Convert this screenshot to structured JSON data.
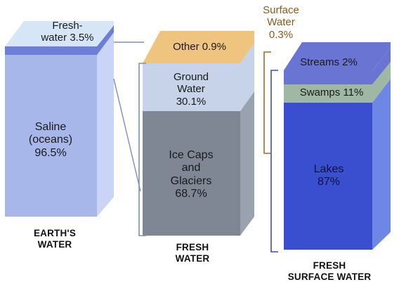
{
  "colors": {
    "ocean": "#a8b7ea",
    "ocean_side": "#c9d4f6",
    "ocean_top": "#cfe2f5",
    "fresh_band": "#6b7fd6",
    "fresh_top": "#d6e6f7",
    "other_top": "#efc47e",
    "ground": "#c6d3e8",
    "ice": "#7f8795",
    "ice_side": "#9aa2b0",
    "streams": "#6a74d2",
    "swamps": "#9fb8a4",
    "lakes": "#3a4fd0",
    "lakes_side": "#6e86e4",
    "bracket_brown": "#a06a2a",
    "bracket_blue": "#3d4fb8",
    "connector": "#7a8fc0"
  },
  "columns": [
    {
      "name": "EARTH'S WATER",
      "caption_lines": [
        "EARTH'S",
        "WATER"
      ],
      "segments": [
        {
          "label_lines": [
            "Fresh-",
            "water 3.5%"
          ],
          "value": 3.5
        },
        {
          "label_lines": [
            "Saline",
            "(oceans)",
            "96.5%"
          ],
          "value": 96.5
        }
      ]
    },
    {
      "name": "FRESH WATER",
      "caption_lines": [
        "FRESH",
        "WATER"
      ],
      "segments": [
        {
          "label_lines": [
            "Other 0.9%"
          ],
          "value": 0.9
        },
        {
          "label_lines": [
            "Ground",
            "Water",
            "30.1%"
          ],
          "value": 30.1
        },
        {
          "label_lines": [
            "Ice Caps",
            "and",
            "Glaciers",
            "68.7%"
          ],
          "value": 68.7
        }
      ],
      "callout_lines": [
        "Surface",
        "Water",
        "0.3%"
      ],
      "callout_value": 0.3
    },
    {
      "name": "FRESH SURFACE WATER",
      "caption_lines": [
        "FRESH",
        "SURFACE WATER"
      ],
      "segments": [
        {
          "label_lines": [
            "Streams 2%"
          ],
          "value": 2
        },
        {
          "label_lines": [
            "Swamps 11%"
          ],
          "value": 11
        },
        {
          "label_lines": [
            "Lakes",
            "87%"
          ],
          "value": 87
        }
      ]
    }
  ]
}
